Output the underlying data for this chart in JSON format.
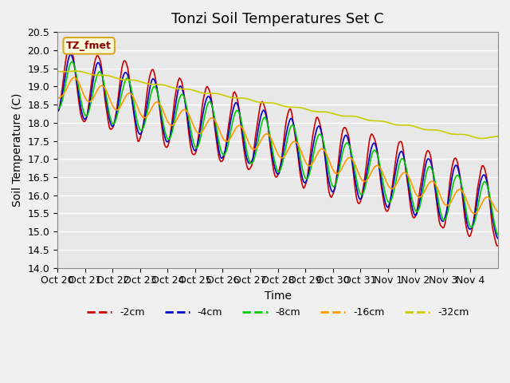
{
  "title": "Tonzi Soil Temperatures Set C",
  "xlabel": "Time",
  "ylabel": "Soil Temperature (C)",
  "ylim": [
    14.0,
    20.5
  ],
  "annotation": "TZ_fmet",
  "bg_color": "#e8e8e8",
  "fig_bg_color": "#f0f0f0",
  "legend_labels": [
    "-2cm",
    "-4cm",
    "-8cm",
    "-16cm",
    "-32cm"
  ],
  "line_colors": [
    "#cc0000",
    "#0000cc",
    "#00cc00",
    "#ff9900",
    "#cccc00"
  ],
  "xtick_labels": [
    "Oct 20",
    "Oct 21",
    "Oct 22",
    "Oct 23",
    "Oct 24",
    "Oct 25",
    "Oct 26",
    "Oct 27",
    "Oct 28",
    "Oct 29",
    "Oct 30",
    "Oct 31",
    "Nov 1",
    "Nov 2",
    "Nov 3",
    "Nov 4"
  ],
  "ytick_values": [
    14.0,
    14.5,
    15.0,
    15.5,
    16.0,
    16.5,
    17.0,
    17.5,
    18.0,
    18.5,
    19.0,
    19.5,
    20.0,
    20.5
  ],
  "grid_color": "#ffffff",
  "title_fontsize": 13,
  "axis_fontsize": 10,
  "tick_fontsize": 9
}
